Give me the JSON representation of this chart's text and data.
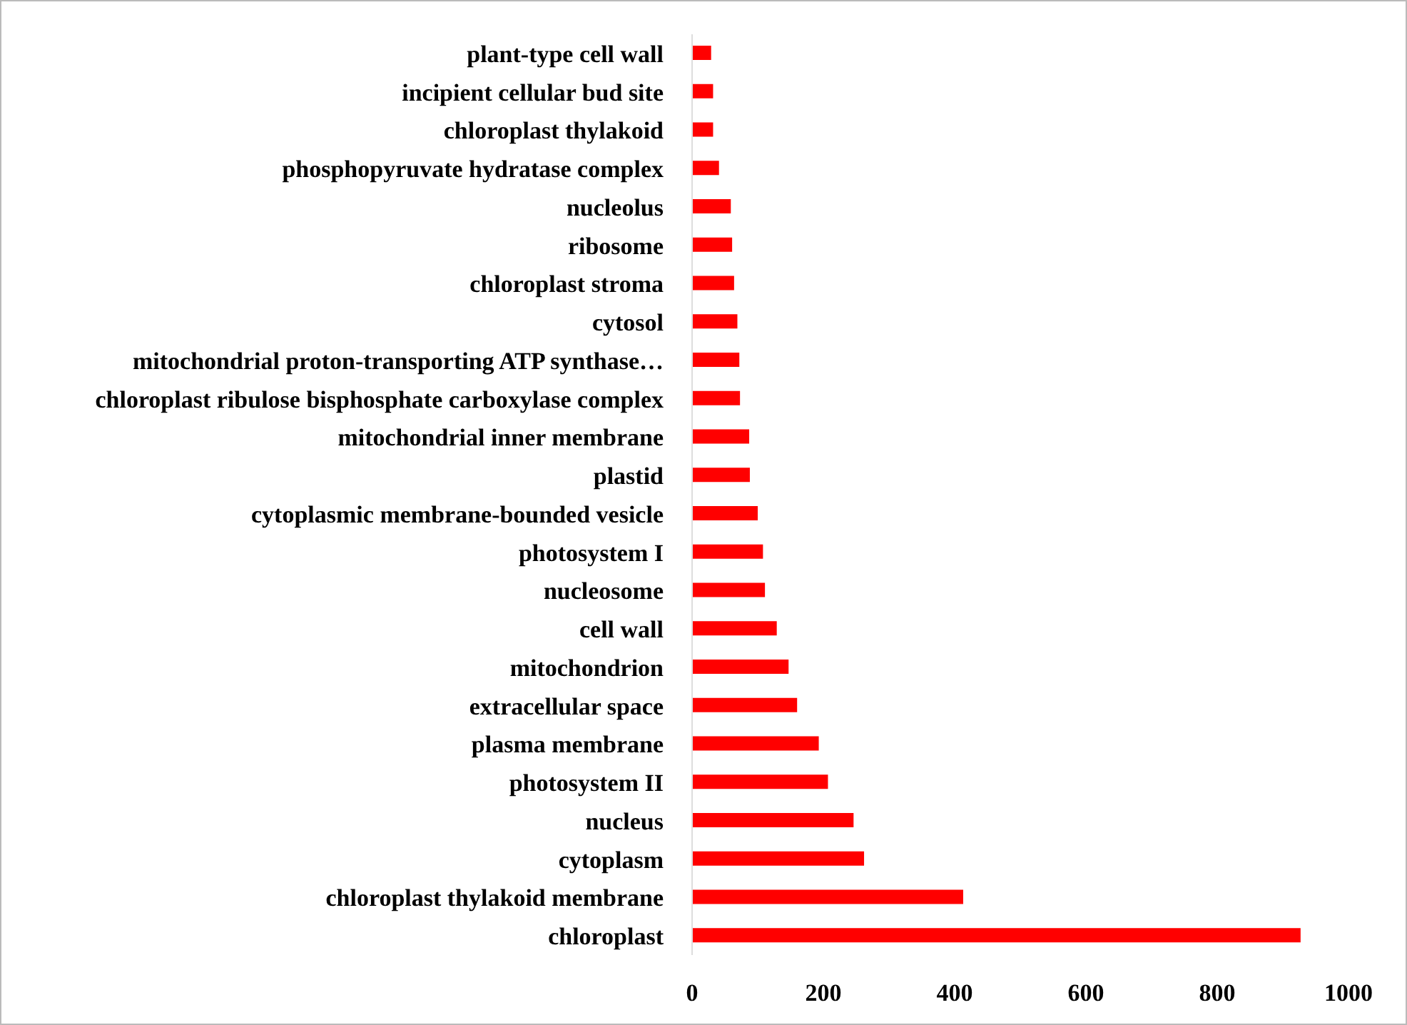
{
  "chart_data": {
    "type": "bar",
    "orientation": "horizontal",
    "categories": [
      "plant-type cell wall",
      "incipient cellular bud site",
      "chloroplast thylakoid",
      "phosphopyruvate hydratase complex",
      "nucleolus",
      "ribosome",
      "chloroplast stroma",
      "cytosol",
      "mitochondrial proton-transporting ATP synthase…",
      "chloroplast ribulose bisphosphate carboxylase complex",
      "mitochondrial inner membrane",
      "plastid",
      "cytoplasmic membrane-bounded vesicle",
      "photosystem I",
      "nucleosome",
      "cell wall",
      "mitochondrion",
      "extracellular space",
      "plasma membrane",
      "photosystem II",
      "nucleus",
      "cytoplasm",
      "chloroplast thylakoid membrane",
      "chloroplast"
    ],
    "values": [
      29,
      32,
      32,
      41,
      59,
      61,
      64,
      69,
      72,
      73,
      87,
      88,
      100,
      108,
      111,
      129,
      147,
      160,
      193,
      207,
      246,
      262,
      413,
      927
    ],
    "color": "#ff0000",
    "xlim": [
      0,
      1000
    ],
    "xticks": [
      0,
      200,
      400,
      600,
      800,
      1000
    ],
    "grid": false,
    "legend": false
  }
}
